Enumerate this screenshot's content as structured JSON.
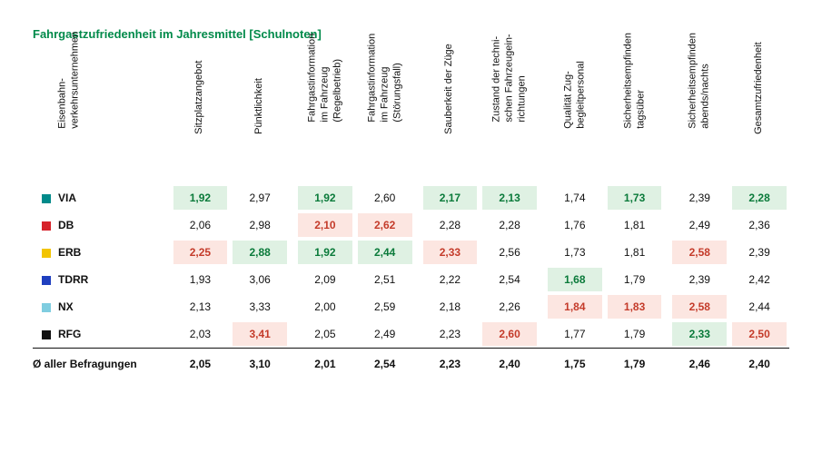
{
  "title": "Fahrgastzufriedenheit im Jahresmittel [Schulnoten]",
  "columns": [
    {
      "lines": [
        "Eisenbahn-",
        "verkehrsunternehmen"
      ]
    },
    {
      "lines": [
        "Sitzplatzangebot"
      ]
    },
    {
      "lines": [
        "Pünktlichkeit"
      ]
    },
    {
      "lines": [
        "Fahrgastinformation",
        "im Fahrzeug",
        "(Regelbetrieb)"
      ]
    },
    {
      "lines": [
        "Fahrgastinformation",
        "im Fahrzeug",
        "(Störungsfall)"
      ]
    },
    {
      "lines": [
        "Sauberkeit der Züge"
      ]
    },
    {
      "lines": [
        "Zustand der techni-",
        "schen Fahrzeugein-",
        "richtungen"
      ]
    },
    {
      "lines": [
        "Qualität Zug-",
        "begleitpersonal"
      ]
    },
    {
      "lines": [
        "Sicherheitsempfinden",
        "tagsüber"
      ]
    },
    {
      "lines": [
        "Sicherheitsempfinden",
        "abends/nachts"
      ]
    },
    {
      "lines": [
        "Gesamtzufriedenheit"
      ]
    }
  ],
  "companies": [
    {
      "name": "VIA",
      "color": "#008a8a"
    },
    {
      "name": "DB",
      "color": "#d6222a"
    },
    {
      "name": "ERB",
      "color": "#f2c400"
    },
    {
      "name": "TDRR",
      "color": "#1f3fbf"
    },
    {
      "name": "NX",
      "color": "#7fcde0"
    },
    {
      "name": "RFG",
      "color": "#111111"
    }
  ],
  "rows": [
    [
      {
        "v": "1,92",
        "hl": "green"
      },
      {
        "v": "2,97"
      },
      {
        "v": "1,92",
        "hl": "green"
      },
      {
        "v": "2,60"
      },
      {
        "v": "2,17",
        "hl": "green"
      },
      {
        "v": "2,13",
        "hl": "green"
      },
      {
        "v": "1,74"
      },
      {
        "v": "1,73",
        "hl": "green"
      },
      {
        "v": "2,39"
      },
      {
        "v": "2,28",
        "hl": "green"
      }
    ],
    [
      {
        "v": "2,06"
      },
      {
        "v": "2,98"
      },
      {
        "v": "2,10",
        "hl": "red"
      },
      {
        "v": "2,62",
        "hl": "red"
      },
      {
        "v": "2,28"
      },
      {
        "v": "2,28"
      },
      {
        "v": "1,76"
      },
      {
        "v": "1,81"
      },
      {
        "v": "2,49"
      },
      {
        "v": "2,36"
      }
    ],
    [
      {
        "v": "2,25",
        "hl": "red"
      },
      {
        "v": "2,88",
        "hl": "green"
      },
      {
        "v": "1,92",
        "hl": "green"
      },
      {
        "v": "2,44",
        "hl": "green"
      },
      {
        "v": "2,33",
        "hl": "red"
      },
      {
        "v": "2,56"
      },
      {
        "v": "1,73"
      },
      {
        "v": "1,81"
      },
      {
        "v": "2,58",
        "hl": "red"
      },
      {
        "v": "2,39"
      }
    ],
    [
      {
        "v": "1,93"
      },
      {
        "v": "3,06"
      },
      {
        "v": "2,09"
      },
      {
        "v": "2,51"
      },
      {
        "v": "2,22"
      },
      {
        "v": "2,54"
      },
      {
        "v": "1,68",
        "hl": "green"
      },
      {
        "v": "1,79"
      },
      {
        "v": "2,39"
      },
      {
        "v": "2,42"
      }
    ],
    [
      {
        "v": "2,13"
      },
      {
        "v": "3,33"
      },
      {
        "v": "2,00"
      },
      {
        "v": "2,59"
      },
      {
        "v": "2,18"
      },
      {
        "v": "2,26"
      },
      {
        "v": "1,84",
        "hl": "red"
      },
      {
        "v": "1,83",
        "hl": "red"
      },
      {
        "v": "2,58",
        "hl": "red"
      },
      {
        "v": "2,44"
      }
    ],
    [
      {
        "v": "2,03"
      },
      {
        "v": "3,41",
        "hl": "red"
      },
      {
        "v": "2,05"
      },
      {
        "v": "2,49"
      },
      {
        "v": "2,23"
      },
      {
        "v": "2,60",
        "hl": "red"
      },
      {
        "v": "1,77"
      },
      {
        "v": "1,79"
      },
      {
        "v": "2,33",
        "hl": "green"
      },
      {
        "v": "2,50",
        "hl": "red"
      }
    ]
  ],
  "footer": {
    "label": "Ø aller Befragungen",
    "values": [
      "2,05",
      "3,10",
      "2,01",
      "2,54",
      "2,23",
      "2,40",
      "1,75",
      "1,79",
      "2,46",
      "2,40"
    ]
  },
  "highlightColors": {
    "greenBg": "#dff1e3",
    "greenFg": "#0a7a3a",
    "redBg": "#fce6e1",
    "redFg": "#c43b2a"
  }
}
